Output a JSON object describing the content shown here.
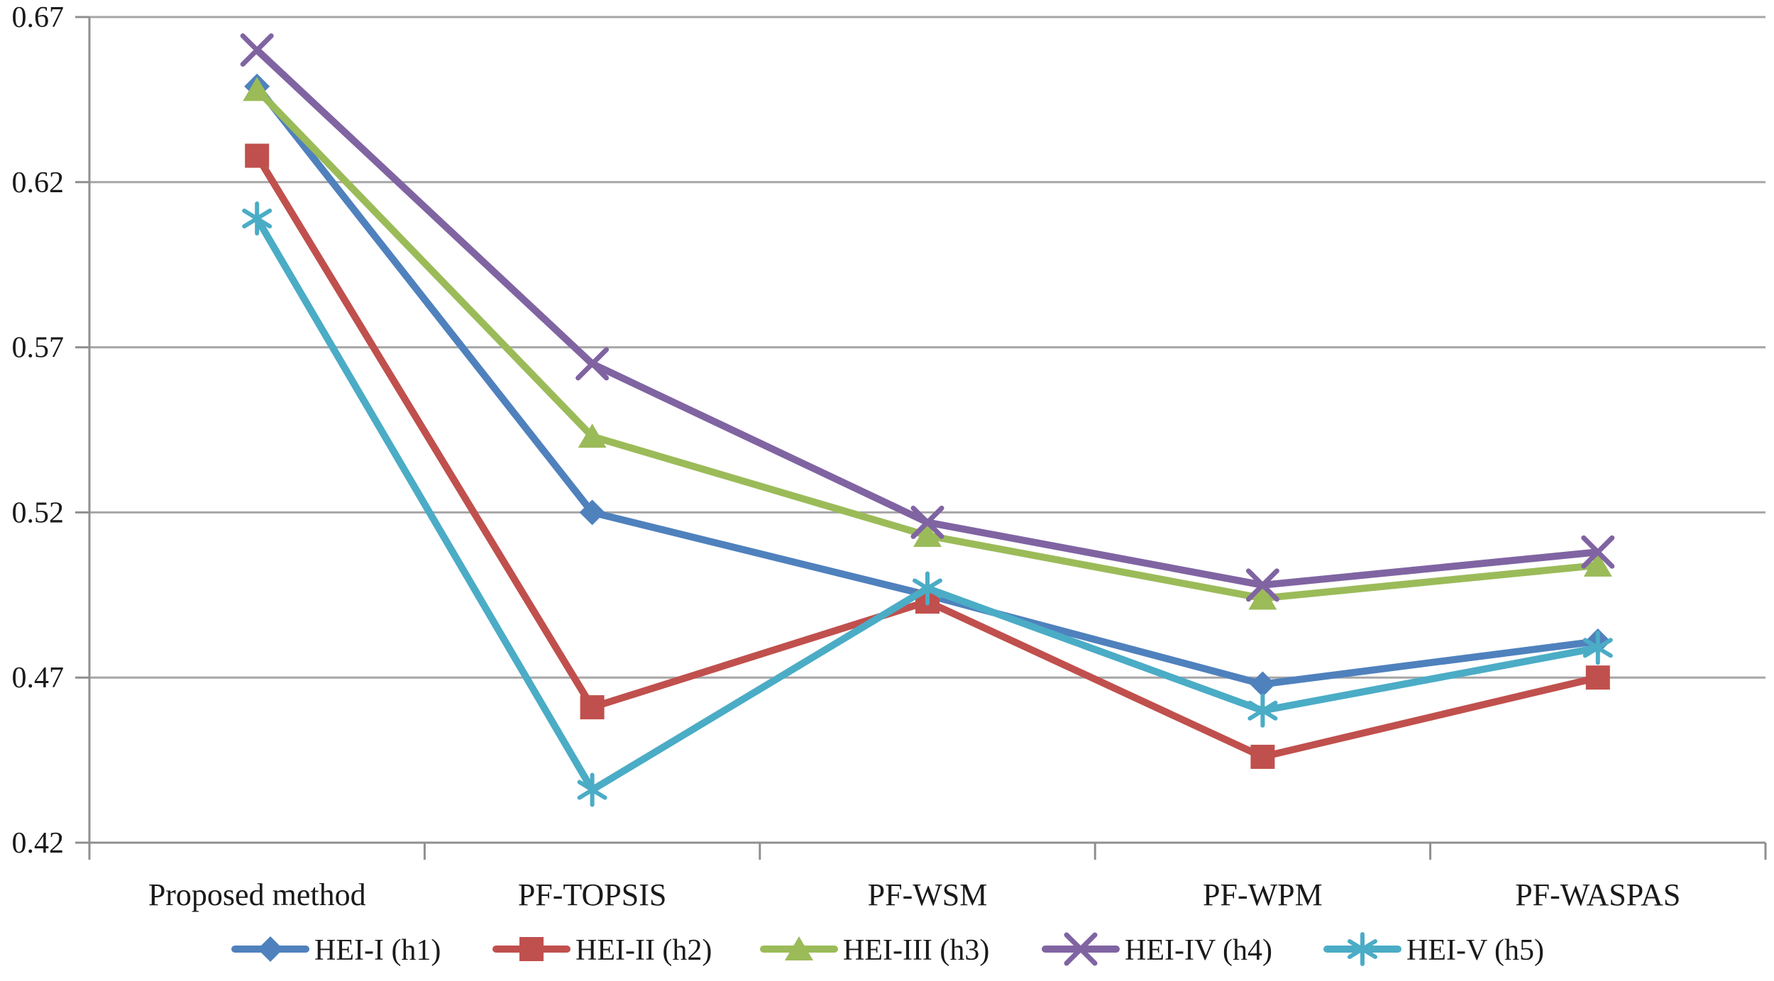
{
  "figure": {
    "background": "#ffffff",
    "text_color": "#1a1a1a",
    "gridline_color": "#a6a6a6",
    "axis_color": "#8f8f8f"
  },
  "chart_data": {
    "type": "line",
    "title": "",
    "xlabel": "",
    "ylabel": "",
    "grid": true,
    "legend_position": "bottom",
    "categories": [
      "Proposed method",
      "PF-TOPSIS",
      "PF-WSM",
      "PF-WPM",
      "PF-WASPAS"
    ],
    "series": [
      {
        "name": "HEI-I (h1)",
        "marker": "diamond",
        "color": "#4F81BD",
        "values": [
          0.649,
          0.52,
          0.495,
          0.468,
          0.481
        ]
      },
      {
        "name": "HEI-II (h2)",
        "marker": "square",
        "color": "#C0504D",
        "values": [
          0.628,
          0.461,
          0.493,
          0.446,
          0.47
        ]
      },
      {
        "name": "HEI-III (h3)",
        "marker": "triangle",
        "color": "#9BBB59",
        "values": [
          0.648,
          0.543,
          0.513,
          0.494,
          0.504
        ]
      },
      {
        "name": "HEI-IV (h4)",
        "marker": "x",
        "color": "#8064A2",
        "values": [
          0.66,
          0.565,
          0.517,
          0.498,
          0.508
        ]
      },
      {
        "name": "HEI-V (h5)",
        "marker": "asterisk",
        "color": "#4BACC6",
        "values": [
          0.609,
          0.436,
          0.497,
          0.46,
          0.479
        ]
      }
    ],
    "y_axis": {
      "min": 0.42,
      "max": 0.67,
      "step": 0.05,
      "tick_labels": [
        "0.67",
        "0.62",
        "0.57",
        "0.52",
        "0.47",
        "0.42"
      ]
    }
  }
}
